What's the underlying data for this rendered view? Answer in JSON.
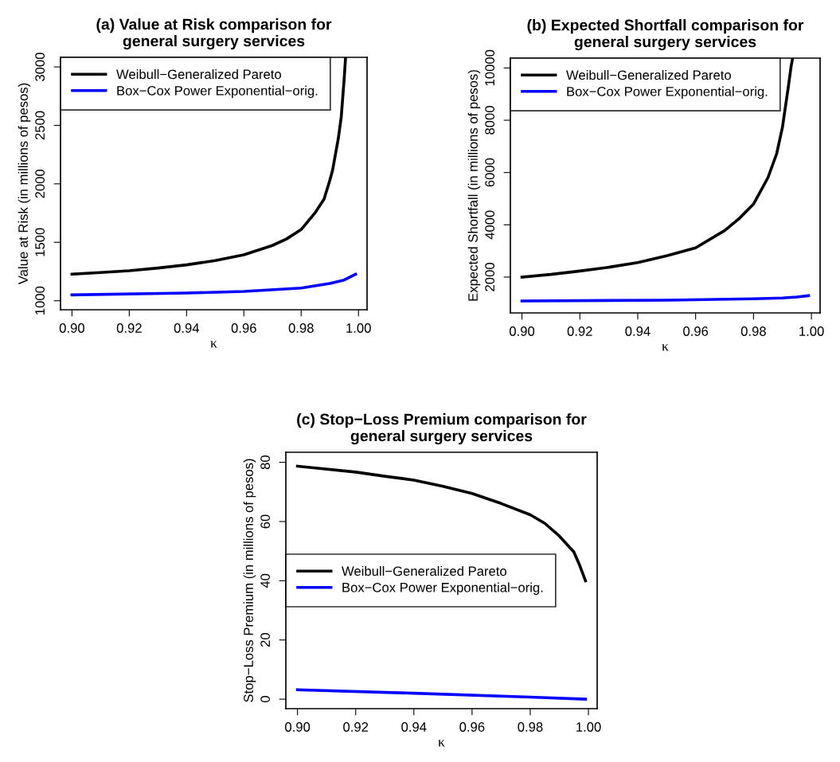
{
  "chart_data": [
    {
      "type": "line",
      "title": "(a) Value at Risk comparison for\ngeneral surgery services",
      "xlabel": "κ",
      "ylabel": "Value at Risk (in millions of pesos)",
      "xlim": [
        0.896,
        1.003
      ],
      "xticks": [
        {
          "value": 0.9,
          "label": "0.90"
        },
        {
          "value": 0.92,
          "label": "0.92"
        },
        {
          "value": 0.94,
          "label": "0.94"
        },
        {
          "value": 0.96,
          "label": "0.96"
        },
        {
          "value": 0.98,
          "label": "0.98"
        },
        {
          "value": 1.0,
          "label": "1.00"
        }
      ],
      "ylim": [
        923,
        3082
      ],
      "yticks": [
        1000,
        1500,
        2000,
        2500,
        3000
      ],
      "legend": "top left",
      "grid": false,
      "line_style": "solid",
      "marker": "none",
      "series": [
        {
          "name": "Weibull−Generalized Pareto",
          "color": "#000000",
          "x": [
            0.9,
            0.91,
            0.92,
            0.93,
            0.94,
            0.95,
            0.96,
            0.97,
            0.975,
            0.98,
            0.985,
            0.988,
            0.99,
            0.991,
            0.993,
            0.994,
            0.995,
            0.9955
          ],
          "values": [
            1227,
            1241,
            1257,
            1280,
            1307,
            1343,
            1393,
            1473,
            1530,
            1609,
            1757,
            1870,
            2030,
            2120,
            2393,
            2575,
            2893,
            3080
          ]
        },
        {
          "name": "Box−Cox Power Exponential−orig.",
          "color": "#0000ff",
          "x": [
            0.9,
            0.94,
            0.96,
            0.98,
            0.99,
            0.995,
            0.999
          ],
          "values": [
            1050,
            1066,
            1080,
            1109,
            1148,
            1177,
            1227
          ]
        }
      ]
    },
    {
      "type": "line",
      "title": "(b) Expected Shortfall comparison for\ngeneral surgery services",
      "xlabel": "κ",
      "ylabel": "Expected Shortfall (in millions of pesos)",
      "xlim": [
        0.896,
        1.003
      ],
      "xticks": [
        {
          "value": 0.9,
          "label": "0.90"
        },
        {
          "value": 0.92,
          "label": "0.92"
        },
        {
          "value": 0.94,
          "label": "0.94"
        },
        {
          "value": 0.96,
          "label": "0.96"
        },
        {
          "value": 0.98,
          "label": "0.98"
        },
        {
          "value": 1.0,
          "label": "1.00"
        }
      ],
      "ylim": [
        629,
        10376
      ],
      "yticks": [
        2000,
        4000,
        6000,
        8000,
        10000
      ],
      "legend": "top left",
      "grid": false,
      "line_style": "solid",
      "marker": "none",
      "series": [
        {
          "name": "Weibull−Generalized Pareto",
          "color": "#000000",
          "x": [
            0.9,
            0.91,
            0.92,
            0.93,
            0.94,
            0.95,
            0.96,
            0.97,
            0.975,
            0.98,
            0.985,
            0.988,
            0.99,
            0.992,
            0.993,
            0.9935
          ],
          "values": [
            2000,
            2102,
            2233,
            2376,
            2558,
            2812,
            3117,
            3777,
            4234,
            4792,
            5807,
            6721,
            7736,
            9259,
            10071,
            10370
          ]
        },
        {
          "name": "Box−Cox Power Exponential−orig.",
          "color": "#0000ff",
          "x": [
            0.9,
            0.95,
            0.98,
            0.99,
            0.995,
            0.999
          ],
          "values": [
            1086,
            1117,
            1168,
            1198,
            1239,
            1289
          ]
        }
      ]
    },
    {
      "type": "line",
      "title": "(c) Stop−Loss Premium comparison for\ngeneral surgery services",
      "xlabel": "κ",
      "ylabel": "Stop−Loss Premium (in millions of pesos)",
      "xlim": [
        0.896,
        1.003
      ],
      "xticks": [
        {
          "value": 0.9,
          "label": "0.90"
        },
        {
          "value": 0.92,
          "label": "0.92"
        },
        {
          "value": 0.94,
          "label": "0.94"
        },
        {
          "value": 0.96,
          "label": "0.96"
        },
        {
          "value": 0.98,
          "label": "0.98"
        },
        {
          "value": 1.0,
          "label": "1.00"
        }
      ],
      "ylim": [
        -3.2,
        83.4
      ],
      "yticks": [
        0,
        20,
        40,
        60,
        80
      ],
      "legend": "left",
      "grid": false,
      "line_style": "solid",
      "marker": "none",
      "series": [
        {
          "name": "Weibull−Generalized Pareto",
          "color": "#000000",
          "x": [
            0.9,
            0.92,
            0.93,
            0.94,
            0.95,
            0.96,
            0.97,
            0.98,
            0.985,
            0.99,
            0.995,
            0.997,
            0.999
          ],
          "values": [
            78.7,
            76.7,
            75.3,
            74.0,
            71.9,
            69.5,
            66.1,
            62.3,
            59.4,
            55.1,
            49.7,
            45.2,
            40.0
          ]
        },
        {
          "name": "Box−Cox Power Exponential−orig.",
          "color": "#0000ff",
          "x": [
            0.9,
            0.94,
            0.98,
            0.999
          ],
          "values": [
            3.2,
            2.0,
            0.7,
            0.0
          ]
        }
      ]
    }
  ]
}
